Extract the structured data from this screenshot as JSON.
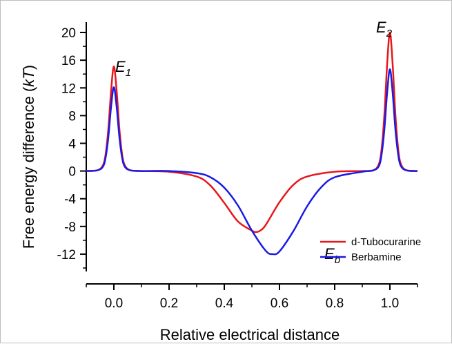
{
  "chart_data": {
    "type": "line",
    "title": "",
    "xlabel": "Relative electrical distance",
    "ylabel_prefix": "Free energy difference (",
    "ylabel_unit": "kT",
    "ylabel_suffix": ")",
    "xlim": [
      -0.1,
      1.1
    ],
    "ylim": [
      -14.5,
      21.5
    ],
    "grid": false,
    "legend_position": "bottom-right",
    "x_ticks": [
      {
        "value": 0.0,
        "label": "0.0"
      },
      {
        "value": 0.2,
        "label": "0.2"
      },
      {
        "value": 0.4,
        "label": "0.4"
      },
      {
        "value": 0.6,
        "label": "0.6"
      },
      {
        "value": 0.8,
        "label": "0.8"
      },
      {
        "value": 1.0,
        "label": "1.0"
      }
    ],
    "y_ticks": [
      {
        "value": 20,
        "label": "20"
      },
      {
        "value": 16,
        "label": "16"
      },
      {
        "value": 12,
        "label": "12"
      },
      {
        "value": 8,
        "label": "8"
      },
      {
        "value": 4,
        "label": "4"
      },
      {
        "value": 0,
        "label": "0"
      },
      {
        "value": -4,
        "label": "-4"
      },
      {
        "value": -8,
        "label": "-8"
      },
      {
        "value": -12,
        "label": "-12"
      }
    ],
    "series": [
      {
        "name": "d-Tubocurarine",
        "color": "#e8161b",
        "x": [
          -0.1,
          -0.06,
          -0.04,
          -0.03,
          -0.02,
          -0.01,
          0.0,
          0.01,
          0.02,
          0.03,
          0.04,
          0.06,
          0.1,
          0.2,
          0.3,
          0.35,
          0.4,
          0.45,
          0.5,
          0.515,
          0.53,
          0.55,
          0.6,
          0.65,
          0.7,
          0.8,
          0.9,
          0.94,
          0.96,
          0.97,
          0.98,
          0.99,
          1.0,
          1.01,
          1.02,
          1.03,
          1.04,
          1.06,
          1.1
        ],
        "y": [
          0,
          0.1,
          0.8,
          2.4,
          6.1,
          11.6,
          15.1,
          11.6,
          6.1,
          2.4,
          0.8,
          0.1,
          0,
          -0.1,
          -0.8,
          -2.1,
          -4.6,
          -7.3,
          -8.6,
          -8.8,
          -8.6,
          -7.8,
          -4.5,
          -2.0,
          -0.8,
          -0.1,
          0,
          0.1,
          1.0,
          3.2,
          8.1,
          15.4,
          20.0,
          15.4,
          8.1,
          3.2,
          1.0,
          0.1,
          0
        ]
      },
      {
        "name": "Berbamine",
        "color": "#1a1ae6",
        "x": [
          -0.1,
          -0.06,
          -0.04,
          -0.03,
          -0.02,
          -0.01,
          0.0,
          0.01,
          0.02,
          0.03,
          0.04,
          0.06,
          0.1,
          0.2,
          0.3,
          0.35,
          0.4,
          0.45,
          0.5,
          0.55,
          0.575,
          0.6,
          0.65,
          0.7,
          0.75,
          0.8,
          0.9,
          0.94,
          0.96,
          0.97,
          0.98,
          0.99,
          1.0,
          1.01,
          1.02,
          1.03,
          1.04,
          1.06,
          1.1
        ],
        "y": [
          0,
          0.1,
          0.6,
          1.9,
          4.9,
          9.3,
          12.1,
          9.3,
          4.9,
          1.9,
          0.6,
          0.1,
          0,
          0,
          -0.3,
          -0.9,
          -2.4,
          -5.0,
          -8.6,
          -11.5,
          -12.0,
          -11.6,
          -8.7,
          -5.1,
          -2.4,
          -0.9,
          -0.1,
          0.1,
          0.7,
          2.4,
          6.0,
          11.3,
          14.7,
          11.3,
          6.0,
          2.4,
          0.7,
          0.1,
          0
        ]
      }
    ],
    "annotations": [
      {
        "main": "E",
        "sub": "1"
      },
      {
        "main": "E",
        "sub": "2"
      },
      {
        "main": "E",
        "sub": "b"
      }
    ]
  }
}
